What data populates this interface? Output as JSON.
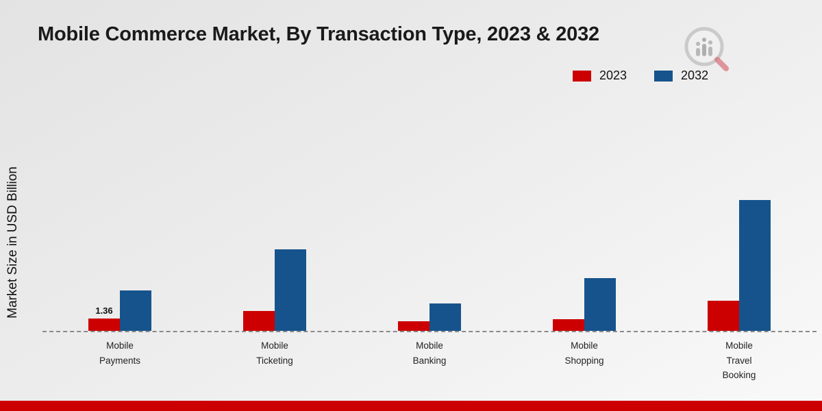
{
  "page": {
    "title": "Mobile Commerce Market, By Transaction Type, 2023 & 2032",
    "ylabel": "Market Size in USD Billion"
  },
  "legend": {
    "items": [
      {
        "label": "2023",
        "color": "#cc0000"
      },
      {
        "label": "2032",
        "color": "#16538c"
      }
    ]
  },
  "chart_data": {
    "type": "bar",
    "title": "Mobile Commerce Market, By Transaction Type, 2023 & 2032",
    "xlabel": "",
    "ylabel": "Market Size in USD Billion",
    "categories": [
      "Mobile\nPayments",
      "Mobile\nTicketing",
      "Mobile\nBanking",
      "Mobile\nShopping",
      "Mobile\nTravel\nBooking"
    ],
    "series": [
      {
        "name": "2023",
        "color": "#cc0000",
        "values": [
          1.36,
          2.2,
          1.1,
          1.3,
          3.3
        ]
      },
      {
        "name": "2032",
        "color": "#16538c",
        "values": [
          4.5,
          9.0,
          3.0,
          5.8,
          14.5
        ]
      }
    ],
    "data_labels": {
      "2023": [
        "1.36",
        "",
        "",
        "",
        ""
      ],
      "2032": [
        "",
        "",
        "",
        "",
        ""
      ]
    },
    "ylim": [
      0,
      15
    ],
    "grid": false,
    "legend_position": "top-right",
    "baseline_style": "dashed"
  },
  "branding": {
    "logo": "market-research-logo",
    "footer_color": "#cc0000"
  }
}
